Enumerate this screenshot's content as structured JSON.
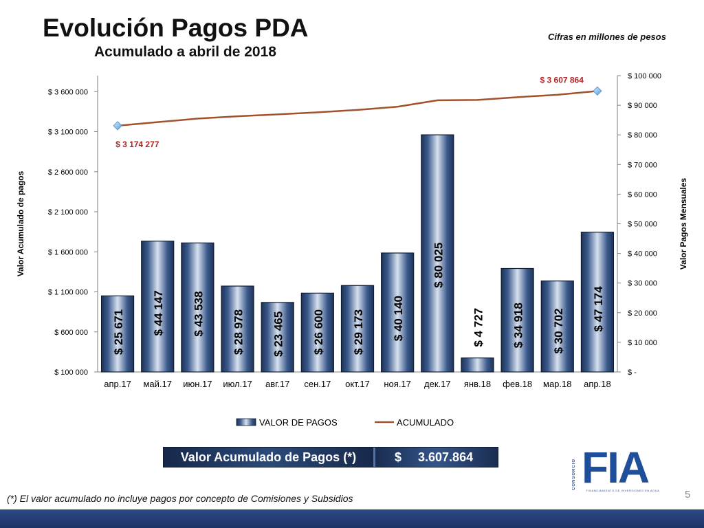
{
  "header": {
    "title": "Evolución Pagos PDA",
    "subtitle": "Acumulado a abril de 2018",
    "units_note": "Cifras en millones de pesos"
  },
  "chart_data": {
    "type": "bar",
    "categories": [
      "апр.17",
      "май.17",
      "июн.17",
      "июл.17",
      "авг.17",
      "сен.17",
      "окт.17",
      "ноя.17",
      "дек.17",
      "янв.18",
      "фев.18",
      "мар.18",
      "апр.18"
    ],
    "series": [
      {
        "name": "VALOR DE PAGOS",
        "type": "bar",
        "axis": "right",
        "values": [
          25671,
          44147,
          43538,
          28978,
          23465,
          26600,
          29173,
          40140,
          80025,
          4727,
          34918,
          30702,
          47174
        ],
        "labels": [
          "$ 25 671",
          "$ 44 147",
          "$ 43 538",
          "$ 28 978",
          "$ 23 465",
          "$ 26 600",
          "$ 29 173",
          "$ 40 140",
          "$ 80 025",
          "$ 4 727",
          "$ 34 918",
          "$ 30 702",
          "$ 47 174"
        ],
        "color": "#3b5a8c"
      },
      {
        "name": "ACUMULADO",
        "type": "line",
        "axis": "left",
        "values": [
          3174277,
          3219000,
          3263000,
          3292000,
          3316000,
          3342000,
          3372000,
          3412000,
          3492000,
          3496000,
          3531000,
          3561000,
          3607864
        ],
        "color": "#a0522d"
      }
    ],
    "line_annotations": [
      {
        "index": 0,
        "text": "$ 3 174 277",
        "color": "#b22222"
      },
      {
        "index": 12,
        "text": "$ 3 607 864",
        "color": "#b22222"
      }
    ],
    "ylabel_left": "Valor Acumulado de pagos",
    "ylabel_right": "Valor Pagos Mensuales",
    "ylim_left": [
      100000,
      3800000
    ],
    "ylim_right": [
      0,
      100000
    ],
    "yticks_left": [
      100000,
      600000,
      1100000,
      1600000,
      2100000,
      2600000,
      3100000,
      3600000
    ],
    "yticks_left_labels": [
      "$ 100 000",
      "$ 600 000",
      "$ 1 100 000",
      "$ 1 600 000",
      "$ 2 100 000",
      "$ 2 600 000",
      "$ 3 100 000",
      "$ 3 600 000"
    ],
    "yticks_right": [
      0,
      10000,
      20000,
      30000,
      40000,
      50000,
      60000,
      70000,
      80000,
      90000,
      100000
    ],
    "yticks_right_labels": [
      "$ -",
      "$ 10 000",
      "$ 20 000",
      "$ 30 000",
      "$ 40 000",
      "$ 50 000",
      "$ 60 000",
      "$ 70 000",
      "$ 80 000",
      "$ 90 000",
      "$ 100 000"
    ],
    "legend_position": "bottom",
    "grid": false
  },
  "summary": {
    "label": "Valor Acumulado de Pagos (*)",
    "currency": "$",
    "value": "3.607.864"
  },
  "footnote": "(*) El valor acumulado no incluye  pagos por concepto de Comisiones y Subsidios",
  "page_number": "5",
  "logo": {
    "word": "FIA",
    "vertical_text": "CONSORCIO",
    "tagline": "FINANCIAMIENTO DE INVERSIONES EN AGUA"
  },
  "colors": {
    "bar": "#3b5a8c",
    "line": "#a0522d",
    "annotation": "#b22222",
    "brand": "#1f4e9a"
  }
}
